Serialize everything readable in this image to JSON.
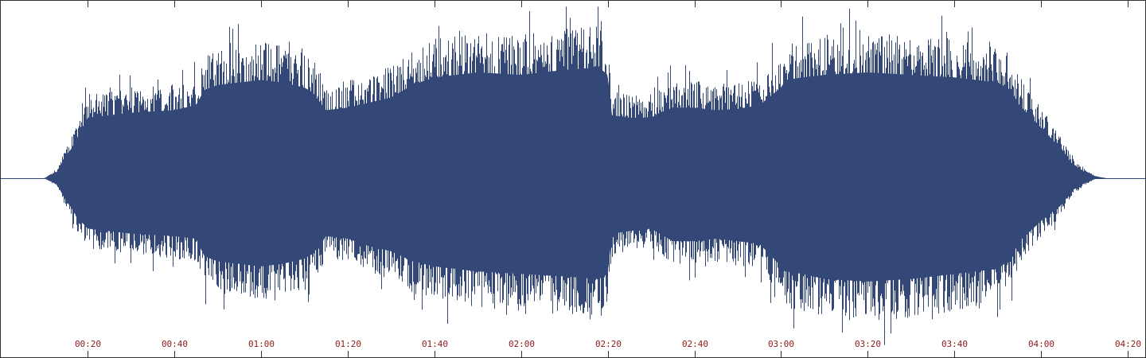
{
  "colors": {
    "waveform": "#344877",
    "axis_tick": "#333333",
    "tick_label": "#8b1a1a",
    "border": "#333333",
    "background": "#ffffff"
  },
  "chart_data": {
    "type": "area",
    "title": "",
    "xlabel": "",
    "ylabel": "",
    "x_unit": "seconds",
    "xlim": [
      0,
      264
    ],
    "ylim": [
      -1,
      1
    ],
    "grid": false,
    "tick_seconds": [
      20,
      40,
      60,
      80,
      100,
      120,
      140,
      160,
      180,
      200,
      220,
      240,
      260
    ],
    "tick_labels": [
      "00:20",
      "00:40",
      "01:00",
      "01:20",
      "01:40",
      "02:00",
      "02:20",
      "02:40",
      "03:00",
      "03:20",
      "03:40",
      "04:00",
      "04:20"
    ],
    "series": [
      {
        "time_seconds": [
          0,
          10,
          13,
          15,
          16,
          17,
          20,
          30,
          40,
          45,
          47,
          50,
          55,
          60,
          65,
          70,
          72,
          75,
          80,
          85,
          90,
          95,
          100,
          110,
          120,
          130,
          138,
          140,
          141,
          145,
          150,
          152,
          155,
          160,
          165,
          170,
          175,
          180,
          181,
          185,
          190,
          200,
          210,
          220,
          230,
          233,
          235,
          240,
          245,
          247,
          250,
          252,
          253,
          255,
          264
        ],
        "envelope_upper": [
          0.0,
          0.0,
          0.05,
          0.18,
          0.22,
          0.28,
          0.48,
          0.52,
          0.54,
          0.58,
          0.7,
          0.74,
          0.76,
          0.78,
          0.76,
          0.72,
          0.68,
          0.54,
          0.56,
          0.6,
          0.64,
          0.74,
          0.8,
          0.84,
          0.82,
          0.86,
          0.88,
          0.82,
          0.5,
          0.48,
          0.48,
          0.52,
          0.56,
          0.56,
          0.54,
          0.55,
          0.58,
          0.72,
          0.78,
          0.8,
          0.82,
          0.84,
          0.82,
          0.8,
          0.76,
          0.7,
          0.58,
          0.4,
          0.22,
          0.12,
          0.05,
          0.02,
          0.01,
          0.0,
          0.0
        ],
        "envelope_lower": [
          0.0,
          0.0,
          -0.05,
          -0.18,
          -0.22,
          -0.28,
          -0.4,
          -0.44,
          -0.46,
          -0.48,
          -0.62,
          -0.66,
          -0.68,
          -0.7,
          -0.68,
          -0.64,
          -0.6,
          -0.46,
          -0.48,
          -0.54,
          -0.58,
          -0.66,
          -0.7,
          -0.74,
          -0.76,
          -0.78,
          -0.8,
          -0.76,
          -0.44,
          -0.42,
          -0.4,
          -0.44,
          -0.5,
          -0.5,
          -0.48,
          -0.5,
          -0.52,
          -0.7,
          -0.74,
          -0.76,
          -0.8,
          -0.82,
          -0.8,
          -0.76,
          -0.72,
          -0.64,
          -0.5,
          -0.34,
          -0.2,
          -0.1,
          -0.04,
          -0.01,
          0.0,
          0.0,
          0.0
        ]
      }
    ]
  }
}
